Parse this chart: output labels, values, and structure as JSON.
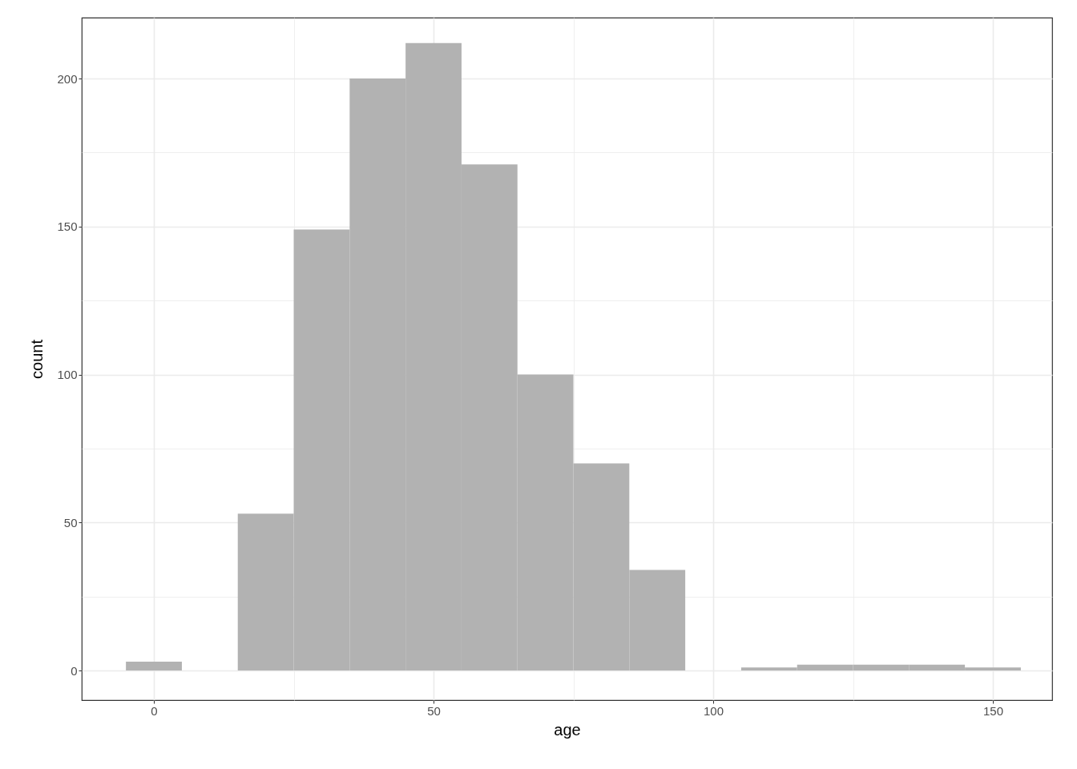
{
  "chart_data": {
    "type": "histogram",
    "xlabel": "age",
    "ylabel": "count",
    "bins": [
      -5,
      5,
      15,
      25,
      35,
      45,
      55,
      65,
      75,
      85,
      95,
      105,
      115,
      125,
      135,
      145,
      155
    ],
    "values": [
      3,
      0,
      53,
      149,
      200,
      212,
      171,
      100,
      70,
      34,
      0,
      1,
      2,
      2,
      2,
      1
    ],
    "color": "#b2b2b2",
    "xlim": [
      -12.9,
      160.6
    ],
    "xticks": [
      0,
      {
        "value": 25,
        "label": null
      },
      50,
      {
        "value": 75,
        "label": null
      },
      100,
      {
        "value": 125,
        "label": null
      },
      150
    ],
    "ylim": [
      -10,
      220.6
    ],
    "yticks": [
      0,
      {
        "value": 25,
        "label": null
      },
      50,
      {
        "value": 75,
        "label": null
      },
      100,
      {
        "value": 125,
        "label": null
      },
      150,
      {
        "value": 175,
        "label": null
      },
      200
    ],
    "grid": true
  }
}
